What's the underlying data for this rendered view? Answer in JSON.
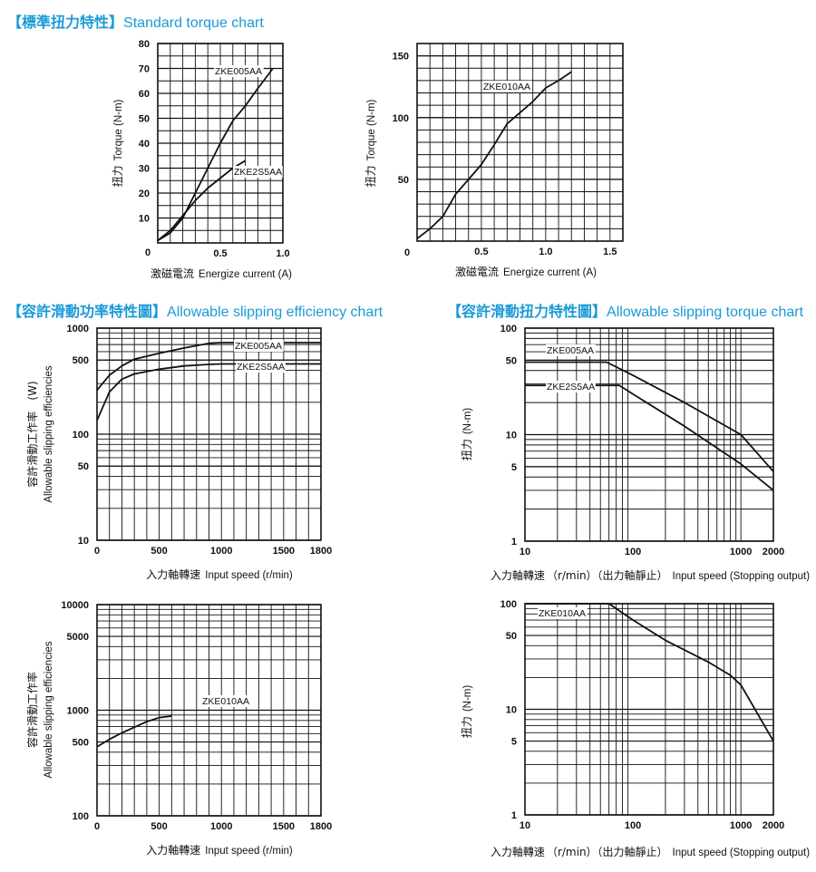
{
  "titles": {
    "t1": {
      "open": "【",
      "cn": "標準扭力特性",
      "close": "】",
      "en": "Standard torque chart"
    },
    "t2": {
      "open": "【",
      "cn": "容許滑動功率特性圖",
      "close": "】",
      "en": "Allowable slipping efficiency chart"
    },
    "t3": {
      "open": "【",
      "cn": "容許滑動扭力特性圖",
      "close": "】",
      "en": "Allowable slipping torque chart"
    }
  },
  "colors": {
    "title": "#1a9ad6",
    "ink": "#111111",
    "grid": "#111111"
  },
  "chart_data": [
    {
      "id": "c1",
      "type": "line",
      "xscale": "linear",
      "yscale": "linear",
      "xlim": [
        0,
        1.0
      ],
      "ylim": [
        0,
        80
      ],
      "xticks": [
        0,
        0.5,
        1.0
      ],
      "xtick_labels": [
        "0",
        "0.5",
        "1.0"
      ],
      "yticks": [
        10,
        20,
        30,
        40,
        50,
        60,
        70,
        80
      ],
      "ytick_labels": [
        "10",
        "20",
        "30",
        "40",
        "50",
        "60",
        "70",
        "80"
      ],
      "x0label": "0",
      "xlabel_cn": "激磁電流",
      "xlabel_en": "Energize current (A)",
      "ylabel_cn": "扭力",
      "ylabel_en": "Torque (N-m)",
      "series": [
        {
          "name": "ZKE005AA",
          "x": [
            0,
            0.1,
            0.2,
            0.3,
            0.4,
            0.5,
            0.6,
            0.7,
            0.8,
            0.92
          ],
          "y": [
            1,
            4,
            10,
            20,
            30,
            40,
            49,
            55,
            62,
            70
          ]
        },
        {
          "name": "ZKE2S5AA",
          "x": [
            0,
            0.1,
            0.2,
            0.3,
            0.4,
            0.5,
            0.6,
            0.7
          ],
          "y": [
            1,
            5,
            11,
            17,
            22,
            26,
            30,
            33
          ]
        }
      ]
    },
    {
      "id": "c2",
      "type": "line",
      "xscale": "linear",
      "yscale": "linear",
      "xlim": [
        0,
        1.6
      ],
      "ylim": [
        0,
        160
      ],
      "xticks": [
        0,
        0.5,
        1.0,
        1.5
      ],
      "xtick_labels": [
        "0",
        "0.5",
        "1.0",
        "1.5"
      ],
      "yticks": [
        50,
        100,
        150
      ],
      "ytick_labels": [
        "50",
        "100",
        "150"
      ],
      "x0label": "0",
      "xlabel_cn": "激磁電流",
      "xlabel_en": "Energize current (A)",
      "ylabel_cn": "扭力",
      "ylabel_en": "Torque (N-m)",
      "series": [
        {
          "name": "ZKE010AA",
          "x": [
            0,
            0.1,
            0.2,
            0.3,
            0.4,
            0.5,
            0.6,
            0.7,
            0.8,
            0.9,
            1.0,
            1.1,
            1.2
          ],
          "y": [
            2,
            10,
            20,
            38,
            50,
            62,
            78,
            95,
            104,
            113,
            124,
            130,
            137
          ]
        }
      ]
    },
    {
      "id": "c3",
      "type": "line",
      "xscale": "linear",
      "yscale": "log",
      "xlim": [
        0,
        1800
      ],
      "ylim": [
        10,
        1000
      ],
      "xticks": [
        0,
        500,
        1000,
        1500,
        1800
      ],
      "xtick_labels": [
        "0",
        "500",
        "1000",
        "1500",
        "1800"
      ],
      "yticks": [
        10,
        50,
        100,
        500,
        1000
      ],
      "ytick_labels": [
        "10",
        "50",
        "100",
        "500",
        "1000"
      ],
      "xlabel_cn": "入力軸轉速",
      "xlabel_en": "Input speed (r/min)",
      "ylabel_cn": "容許滑動工作率　(W)",
      "ylabel_en": "Allowable slipping efficiencies",
      "series": [
        {
          "name": "ZKE005AA",
          "x": [
            0,
            100,
            200,
            300,
            500,
            700,
            900,
            1000,
            1100,
            1800
          ],
          "y": [
            260,
            360,
            440,
            510,
            580,
            650,
            720,
            730,
            730,
            730
          ]
        },
        {
          "name": "ZKE2S5AA",
          "x": [
            0,
            100,
            200,
            300,
            500,
            700,
            900,
            1000,
            1800
          ],
          "y": [
            135,
            250,
            330,
            370,
            410,
            440,
            455,
            460,
            460
          ]
        }
      ]
    },
    {
      "id": "c4",
      "type": "line",
      "xscale": "log",
      "yscale": "log",
      "xlim": [
        10,
        2000
      ],
      "ylim": [
        1,
        100
      ],
      "xticks": [
        10,
        100,
        1000,
        2000
      ],
      "xtick_labels": [
        "10",
        "100",
        "1000",
        "2000"
      ],
      "yticks": [
        1,
        5,
        10,
        50,
        100
      ],
      "ytick_labels": [
        "1",
        "5",
        "10",
        "50",
        "100"
      ],
      "xlabel_cn": "入力軸轉速",
      "xlabel_paren": "（r/min）（出力軸靜止）",
      "xlabel_en": "Input speed (Stopping output)",
      "ylabel_cn": "扭力",
      "ylabel_en": "(N-m)",
      "series": [
        {
          "name": "ZKE005AA",
          "x": [
            10,
            57,
            100,
            300,
            1000,
            2000
          ],
          "y": [
            48,
            48,
            36,
            20,
            10,
            4.5
          ]
        },
        {
          "name": "ZKE2S5AA",
          "x": [
            10,
            75,
            100,
            300,
            1000,
            2000
          ],
          "y": [
            29,
            29,
            24,
            12,
            5.3,
            3
          ]
        }
      ]
    },
    {
      "id": "c5",
      "type": "line",
      "xscale": "linear",
      "yscale": "log",
      "xlim": [
        0,
        1800
      ],
      "ylim": [
        100,
        10000
      ],
      "xticks": [
        0,
        500,
        1000,
        1500,
        1800
      ],
      "xtick_labels": [
        "0",
        "500",
        "1000",
        "1500",
        "1800"
      ],
      "yticks": [
        100,
        500,
        1000,
        5000,
        10000
      ],
      "ytick_labels": [
        "100",
        "500",
        "1000",
        "5000",
        "10000"
      ],
      "xlabel_cn": "入力軸轉速",
      "xlabel_en": "Input speed (r/min)",
      "ylabel_cn": "容許滑動工作率",
      "ylabel_en": "Allowable slipping efficiencies",
      "series": [
        {
          "name": "ZKE010AA",
          "x": [
            0,
            100,
            200,
            300,
            400,
            500,
            600
          ],
          "y": [
            450,
            530,
            610,
            690,
            780,
            850,
            880
          ]
        }
      ]
    },
    {
      "id": "c6",
      "type": "line",
      "xscale": "log",
      "yscale": "log",
      "xlim": [
        10,
        2000
      ],
      "ylim": [
        1,
        100
      ],
      "xticks": [
        10,
        100,
        1000,
        2000
      ],
      "xtick_labels": [
        "10",
        "100",
        "1000",
        "2000"
      ],
      "yticks": [
        1,
        5,
        10,
        50,
        100
      ],
      "ytick_labels": [
        "1",
        "5",
        "10",
        "50",
        "100"
      ],
      "xlabel_cn": "入力軸轉速",
      "xlabel_paren": "（r/min）（出力軸靜止）",
      "xlabel_en": "Input speed (Stopping output)",
      "ylabel_cn": "扭力",
      "ylabel_en": "(N-m)",
      "series": [
        {
          "name": "ZKE010AA",
          "x": [
            10,
            60,
            100,
            200,
            500,
            800,
            1000,
            2000
          ],
          "y": [
            100,
            100,
            70,
            45,
            28,
            21,
            17,
            5
          ]
        }
      ]
    }
  ]
}
